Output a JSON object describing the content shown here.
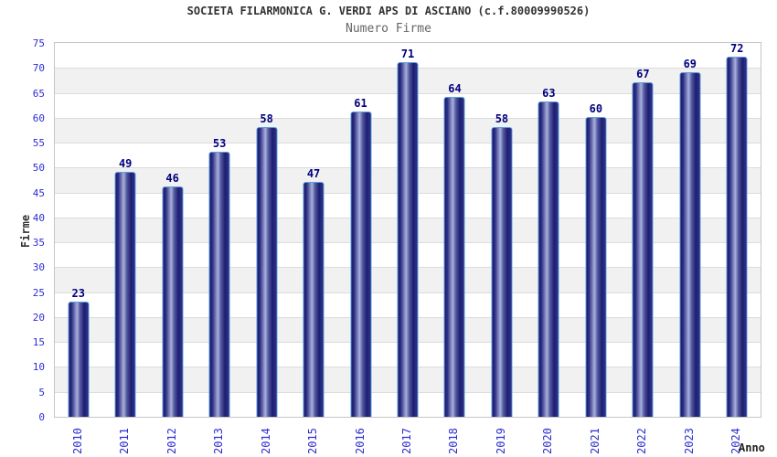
{
  "chart_data": {
    "type": "bar",
    "title": "SOCIETA FILARMONICA G. VERDI APS DI ASCIANO (c.f.80009990526)",
    "subtitle": "Numero Firme",
    "xlabel": "Anno",
    "ylabel": "Firme",
    "categories": [
      "2010",
      "2011",
      "2012",
      "2013",
      "2014",
      "2015",
      "2016",
      "2017",
      "2018",
      "2019",
      "2020",
      "2021",
      "2022",
      "2023",
      "2024"
    ],
    "values": [
      23,
      49,
      46,
      53,
      58,
      47,
      61,
      71,
      64,
      58,
      63,
      60,
      67,
      69,
      72
    ],
    "ylim": [
      0,
      75
    ],
    "ytick_step": 5,
    "grid": true,
    "alternating_bands": true,
    "legend": "none",
    "colors": {
      "title": "#333333",
      "subtitle": "#666666",
      "axis_tick": "#2d2dd2",
      "value_label": "#00007e",
      "axis_title": "#222222",
      "plot_border": "#c6c6c6",
      "gridline": "#dcdcdc",
      "band": "#f1f1f1",
      "bar_outline": "#5e9fe0",
      "bar_dark": "#181868",
      "bar_mid": "#2e2e84",
      "bar_highlight": "#a9b1dc"
    }
  }
}
